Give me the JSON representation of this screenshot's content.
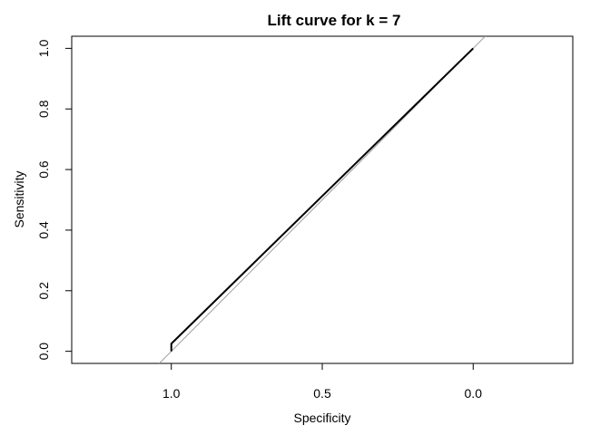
{
  "chart_data": {
    "type": "line",
    "title": "Lift curve for k = 7",
    "xlabel": "Specificity",
    "ylabel": "Sensitivity",
    "x_reversed": true,
    "xlim": [
      1.33,
      -0.33
    ],
    "ylim": [
      -0.04,
      1.04
    ],
    "x_ticks": [
      "1.0",
      "0.5",
      "0.0"
    ],
    "x_tick_values": [
      1.0,
      0.5,
      0.0
    ],
    "y_ticks": [
      "0.0",
      "0.2",
      "0.4",
      "0.6",
      "0.8",
      "1.0"
    ],
    "y_tick_values": [
      0.0,
      0.2,
      0.4,
      0.6,
      0.8,
      1.0
    ],
    "grid": false,
    "legend": "none",
    "reference_line": {
      "from": {
        "x": 1.04,
        "y": -0.04
      },
      "to": {
        "x": -0.04,
        "y": 1.04
      },
      "color": "#a0a0a0"
    },
    "series": [
      {
        "x": [
          1.0,
          1.0,
          0.0
        ],
        "y": [
          0.0,
          0.025,
          1.0
        ],
        "color": "#000000"
      }
    ]
  }
}
